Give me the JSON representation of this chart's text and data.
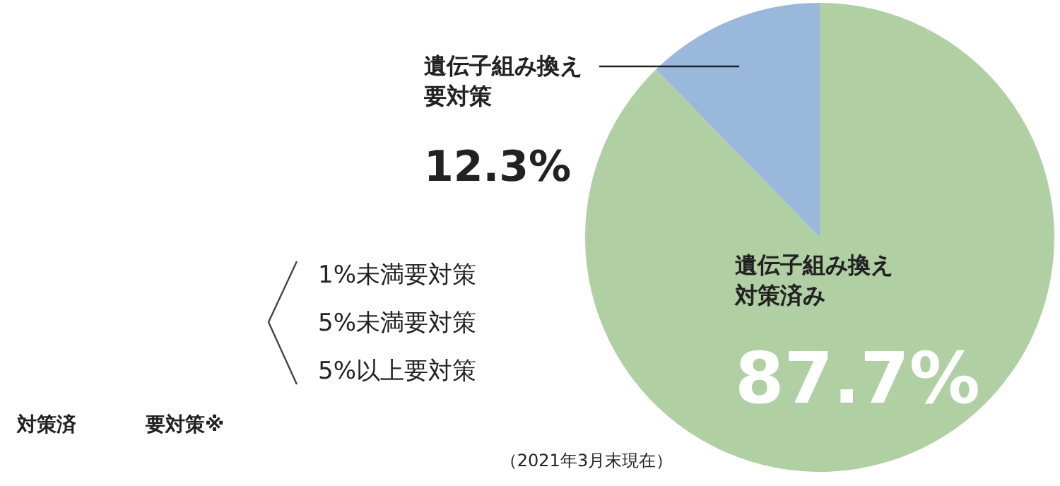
{
  "chart_data": {
    "type": "pie",
    "categories": [
      "遺伝子組み換え対策済み",
      "遺伝子組み換え要対策"
    ],
    "values": [
      87.7,
      12.3
    ],
    "colors": [
      "#b0d0a4",
      "#9ab8dc"
    ],
    "value_labels": [
      "87.7%",
      "12.3%"
    ],
    "annotations": [
      "対策済",
      "要対策※",
      "1%未満要対策",
      "5%未満要対策",
      "5%以上要対策",
      "（2021年3月末現在）"
    ]
  }
}
